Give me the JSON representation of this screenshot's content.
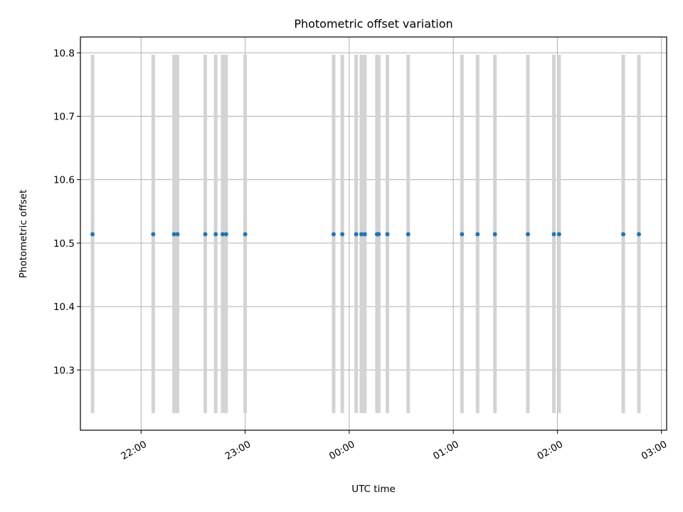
{
  "chart_data": {
    "type": "scatter",
    "title": "Photometric offset variation",
    "xlabel": "UTC time",
    "ylabel": "Photometric offset",
    "x_axis": {
      "kind": "time",
      "ticks": [
        "22:00",
        "23:00",
        "00:00",
        "01:00",
        "02:00",
        "03:00"
      ],
      "range": [
        "21:25",
        "03:03"
      ]
    },
    "y_axis": {
      "ticks": [
        10.3,
        10.4,
        10.5,
        10.6,
        10.7,
        10.8
      ],
      "range": [
        10.205,
        10.825
      ]
    },
    "grid": true,
    "series": [
      {
        "color": "#1f77b4",
        "error_color": "#d3d3d3",
        "points": [
          {
            "x": "21:32",
            "y": 10.514,
            "ylow": 10.232,
            "yhigh": 10.797
          },
          {
            "x": "22:07",
            "y": 10.514,
            "ylow": 10.232,
            "yhigh": 10.797
          },
          {
            "x": "22:19",
            "y": 10.514,
            "ylow": 10.232,
            "yhigh": 10.797
          },
          {
            "x": "22:21",
            "y": 10.514,
            "ylow": 10.232,
            "yhigh": 10.797
          },
          {
            "x": "22:37",
            "y": 10.514,
            "ylow": 10.232,
            "yhigh": 10.797
          },
          {
            "x": "22:43",
            "y": 10.514,
            "ylow": 10.232,
            "yhigh": 10.797
          },
          {
            "x": "22:47",
            "y": 10.514,
            "ylow": 10.232,
            "yhigh": 10.797
          },
          {
            "x": "22:49",
            "y": 10.514,
            "ylow": 10.232,
            "yhigh": 10.797
          },
          {
            "x": "23:00",
            "y": 10.514,
            "ylow": 10.232,
            "yhigh": 10.797
          },
          {
            "x": "23:51",
            "y": 10.514,
            "ylow": 10.232,
            "yhigh": 10.797
          },
          {
            "x": "23:56",
            "y": 10.514,
            "ylow": 10.232,
            "yhigh": 10.797
          },
          {
            "x": "00:04",
            "y": 10.514,
            "ylow": 10.232,
            "yhigh": 10.797
          },
          {
            "x": "00:07",
            "y": 10.514,
            "ylow": 10.232,
            "yhigh": 10.797
          },
          {
            "x": "00:09",
            "y": 10.514,
            "ylow": 10.232,
            "yhigh": 10.797
          },
          {
            "x": "00:16",
            "y": 10.514,
            "ylow": 10.232,
            "yhigh": 10.797
          },
          {
            "x": "00:17",
            "y": 10.514,
            "ylow": 10.232,
            "yhigh": 10.797
          },
          {
            "x": "00:22",
            "y": 10.514,
            "ylow": 10.232,
            "yhigh": 10.797
          },
          {
            "x": "00:34",
            "y": 10.514,
            "ylow": 10.232,
            "yhigh": 10.797
          },
          {
            "x": "01:05",
            "y": 10.514,
            "ylow": 10.232,
            "yhigh": 10.797
          },
          {
            "x": "01:14",
            "y": 10.514,
            "ylow": 10.232,
            "yhigh": 10.797
          },
          {
            "x": "01:24",
            "y": 10.514,
            "ylow": 10.232,
            "yhigh": 10.797
          },
          {
            "x": "01:43",
            "y": 10.514,
            "ylow": 10.232,
            "yhigh": 10.797
          },
          {
            "x": "01:58",
            "y": 10.514,
            "ylow": 10.232,
            "yhigh": 10.797
          },
          {
            "x": "02:01",
            "y": 10.514,
            "ylow": 10.232,
            "yhigh": 10.797
          },
          {
            "x": "02:38",
            "y": 10.514,
            "ylow": 10.232,
            "yhigh": 10.797
          },
          {
            "x": "02:47",
            "y": 10.514,
            "ylow": 10.232,
            "yhigh": 10.797
          }
        ]
      }
    ]
  }
}
